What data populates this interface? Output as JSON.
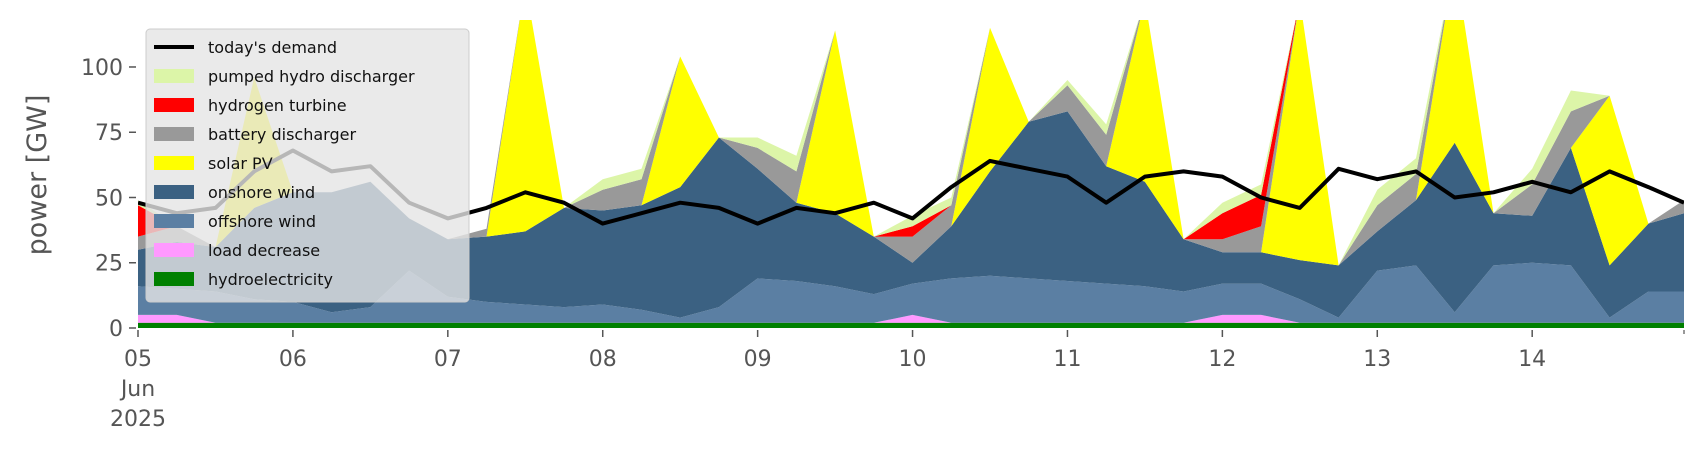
{
  "chart_data": {
    "type": "area",
    "title": "",
    "ylabel": "power [GW]",
    "xlabel": "",
    "ylim": [
      0,
      118
    ],
    "xlim": [
      0,
      9.98
    ],
    "grid": false,
    "legend_position": "top-left",
    "yticks": [
      {
        "value": 0,
        "label": "0"
      },
      {
        "value": 25,
        "label": "25"
      },
      {
        "value": 50,
        "label": "50"
      },
      {
        "value": 75,
        "label": "75"
      },
      {
        "value": 100,
        "label": "100"
      }
    ],
    "xticks": [
      {
        "value": 0,
        "label": "05",
        "sublabels": [
          "Jun",
          "2025"
        ]
      },
      {
        "value": 1,
        "label": "06"
      },
      {
        "value": 2,
        "label": "07"
      },
      {
        "value": 3,
        "label": "08"
      },
      {
        "value": 4,
        "label": "09"
      },
      {
        "value": 5,
        "label": "10"
      },
      {
        "value": 6,
        "label": "11"
      },
      {
        "value": 7,
        "label": "12"
      },
      {
        "value": 8,
        "label": "13"
      },
      {
        "value": 9,
        "label": "14"
      }
    ],
    "x": [
      0,
      0.25,
      0.5,
      0.75,
      1,
      1.25,
      1.5,
      1.75,
      2,
      2.25,
      2.5,
      2.75,
      3,
      3.25,
      3.5,
      3.75,
      4,
      4.25,
      4.5,
      4.75,
      5,
      5.25,
      5.5,
      5.75,
      6,
      6.25,
      6.5,
      6.75,
      7,
      7.25,
      7.5,
      7.75,
      8,
      8.25,
      8.5,
      8.75,
      9,
      9.25,
      9.5,
      9.75,
      9.98
    ],
    "series": [
      {
        "name": "hydroelectricity",
        "color": "#008000",
        "values": [
          2,
          2,
          2,
          2,
          2,
          2,
          2,
          2,
          2,
          2,
          2,
          2,
          2,
          2,
          2,
          2,
          2,
          2,
          2,
          2,
          2,
          2,
          2,
          2,
          2,
          2,
          2,
          2,
          2,
          2,
          2,
          2,
          2,
          2,
          2,
          2,
          2,
          2,
          2,
          2,
          2
        ]
      },
      {
        "name": "load decrease",
        "color": "#ff99ff",
        "values": [
          3,
          3,
          0,
          0,
          0,
          0,
          0,
          0,
          0,
          0,
          0,
          0,
          0,
          0,
          0,
          0,
          0,
          0,
          0,
          0,
          3,
          0,
          0,
          0,
          0,
          0,
          0,
          0,
          3,
          3,
          0,
          0,
          0,
          0,
          0,
          0,
          0,
          0,
          0,
          0,
          0
        ]
      },
      {
        "name": "offshore wind",
        "color": "#5b7fa3",
        "values": [
          11,
          10,
          12,
          9,
          8,
          4,
          6,
          20,
          10,
          8,
          7,
          6,
          7,
          5,
          2,
          6,
          17,
          16,
          14,
          11,
          12,
          17,
          18,
          17,
          16,
          15,
          14,
          12,
          12,
          12,
          9,
          2,
          20,
          22,
          4,
          22,
          23,
          22,
          2,
          12,
          12
        ]
      },
      {
        "name": "onshore wind",
        "color": "#3b6182",
        "values": [
          14,
          18,
          17,
          35,
          42,
          46,
          48,
          20,
          22,
          25,
          28,
          38,
          36,
          40,
          50,
          65,
          42,
          30,
          28,
          22,
          8,
          20,
          40,
          60,
          65,
          45,
          40,
          20,
          12,
          12,
          15,
          20,
          15,
          25,
          65,
          20,
          18,
          45,
          20,
          26,
          30
        ]
      },
      {
        "name": "solar PV",
        "color": "#ffff00",
        "values": [
          0,
          0,
          0,
          50,
          0,
          0,
          0,
          0,
          0,
          0,
          95,
          0,
          0,
          0,
          50,
          0,
          0,
          0,
          70,
          0,
          0,
          0,
          55,
          0,
          0,
          0,
          70,
          0,
          0,
          0,
          100,
          0,
          0,
          0,
          70,
          0,
          0,
          0,
          65,
          0,
          0
        ]
      },
      {
        "name": "battery discharger",
        "color": "#999999",
        "values": [
          5,
          6,
          0,
          0,
          0,
          0,
          0,
          0,
          0,
          3,
          0,
          0,
          8,
          10,
          0,
          0,
          8,
          12,
          0,
          0,
          10,
          8,
          0,
          0,
          10,
          12,
          0,
          0,
          5,
          10,
          0,
          0,
          10,
          10,
          0,
          0,
          12,
          14,
          0,
          0,
          5
        ]
      },
      {
        "name": "hydrogen turbine",
        "color": "#ff0000",
        "values": [
          12,
          0,
          0,
          0,
          0,
          0,
          0,
          0,
          0,
          0,
          0,
          0,
          0,
          0,
          0,
          0,
          0,
          0,
          0,
          0,
          4,
          0,
          0,
          0,
          0,
          0,
          0,
          0,
          10,
          12,
          0,
          0,
          0,
          0,
          0,
          0,
          0,
          0,
          0,
          0,
          0
        ]
      },
      {
        "name": "pumped hydro discharger",
        "color": "#dcf5a8",
        "values": [
          2,
          0,
          0,
          0,
          0,
          0,
          0,
          0,
          0,
          0,
          0,
          0,
          4,
          4,
          0,
          0,
          4,
          6,
          0,
          0,
          4,
          3,
          0,
          0,
          2,
          4,
          0,
          0,
          4,
          4,
          0,
          0,
          6,
          6,
          0,
          0,
          6,
          8,
          0,
          0,
          0
        ]
      }
    ],
    "demand": {
      "name": "today's demand",
      "color": "#000000",
      "values": [
        48,
        44,
        46,
        60,
        68,
        60,
        62,
        48,
        42,
        46,
        52,
        48,
        40,
        44,
        48,
        46,
        40,
        46,
        44,
        48,
        42,
        54,
        64,
        61,
        58,
        48,
        58,
        60,
        58,
        50,
        46,
        61,
        57,
        60,
        50,
        52,
        56,
        52,
        60,
        54,
        48
      ]
    }
  },
  "legend": {
    "items": [
      {
        "label": "today's demand",
        "color": "#000000",
        "kind": "line"
      },
      {
        "label": "pumped hydro discharger",
        "color": "#dcf5a8",
        "kind": "patch"
      },
      {
        "label": "hydrogen turbine",
        "color": "#ff0000",
        "kind": "patch"
      },
      {
        "label": "battery discharger",
        "color": "#999999",
        "kind": "patch"
      },
      {
        "label": "solar PV",
        "color": "#ffff00",
        "kind": "patch"
      },
      {
        "label": "onshore wind",
        "color": "#3b6182",
        "kind": "patch"
      },
      {
        "label": "offshore wind",
        "color": "#5b7fa3",
        "kind": "patch"
      },
      {
        "label": "load decrease",
        "color": "#ff99ff",
        "kind": "patch"
      },
      {
        "label": "hydroelectricity",
        "color": "#008000",
        "kind": "patch"
      }
    ]
  }
}
